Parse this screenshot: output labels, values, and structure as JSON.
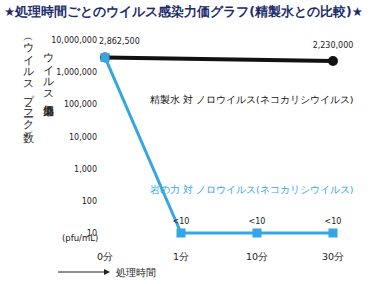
{
  "chart_data": {
    "type": "line",
    "title": "★処理時間ごとのウイルス感染力価グラフ(精製水との比較)★",
    "y_label": "ウイルス感染力価",
    "y_label_sub": "（ウイルスプラーク数）",
    "y_unit": "(pfu/mL)",
    "x_label": "処理時間",
    "categories": [
      "0分",
      "1分",
      "10分",
      "30分"
    ],
    "log": "y",
    "ylim": [
      10,
      10000000
    ],
    "yticks": [
      10,
      100,
      {
        "value": 1000,
        "label": "1,000"
      },
      {
        "value": 10000,
        "label": "10,000"
      },
      {
        "value": 100000,
        "label": "100,000"
      },
      {
        "value": 1000000,
        "label": "1,000,000"
      },
      {
        "value": 10000000,
        "label": "10,000,000"
      }
    ],
    "grid": false,
    "data_labels": true,
    "series": [
      {
        "name": "精製水 対 ノロウイルス(ネコカリシウイルス)",
        "color": "#111111",
        "marker": "circle",
        "x": [
          "0分",
          "30分"
        ],
        "values": [
          2862500,
          2230000
        ],
        "value_labels": [
          "2,862,500",
          "2,230,000"
        ]
      },
      {
        "name": "岩の力 対 ノロウイルス(ネコカリシウイルス)",
        "color": "#35a6e2",
        "marker": "square",
        "values": [
          2862500,
          10,
          10,
          10
        ],
        "value_labels": [
          null,
          "<10",
          "<10",
          "<10"
        ]
      }
    ]
  }
}
